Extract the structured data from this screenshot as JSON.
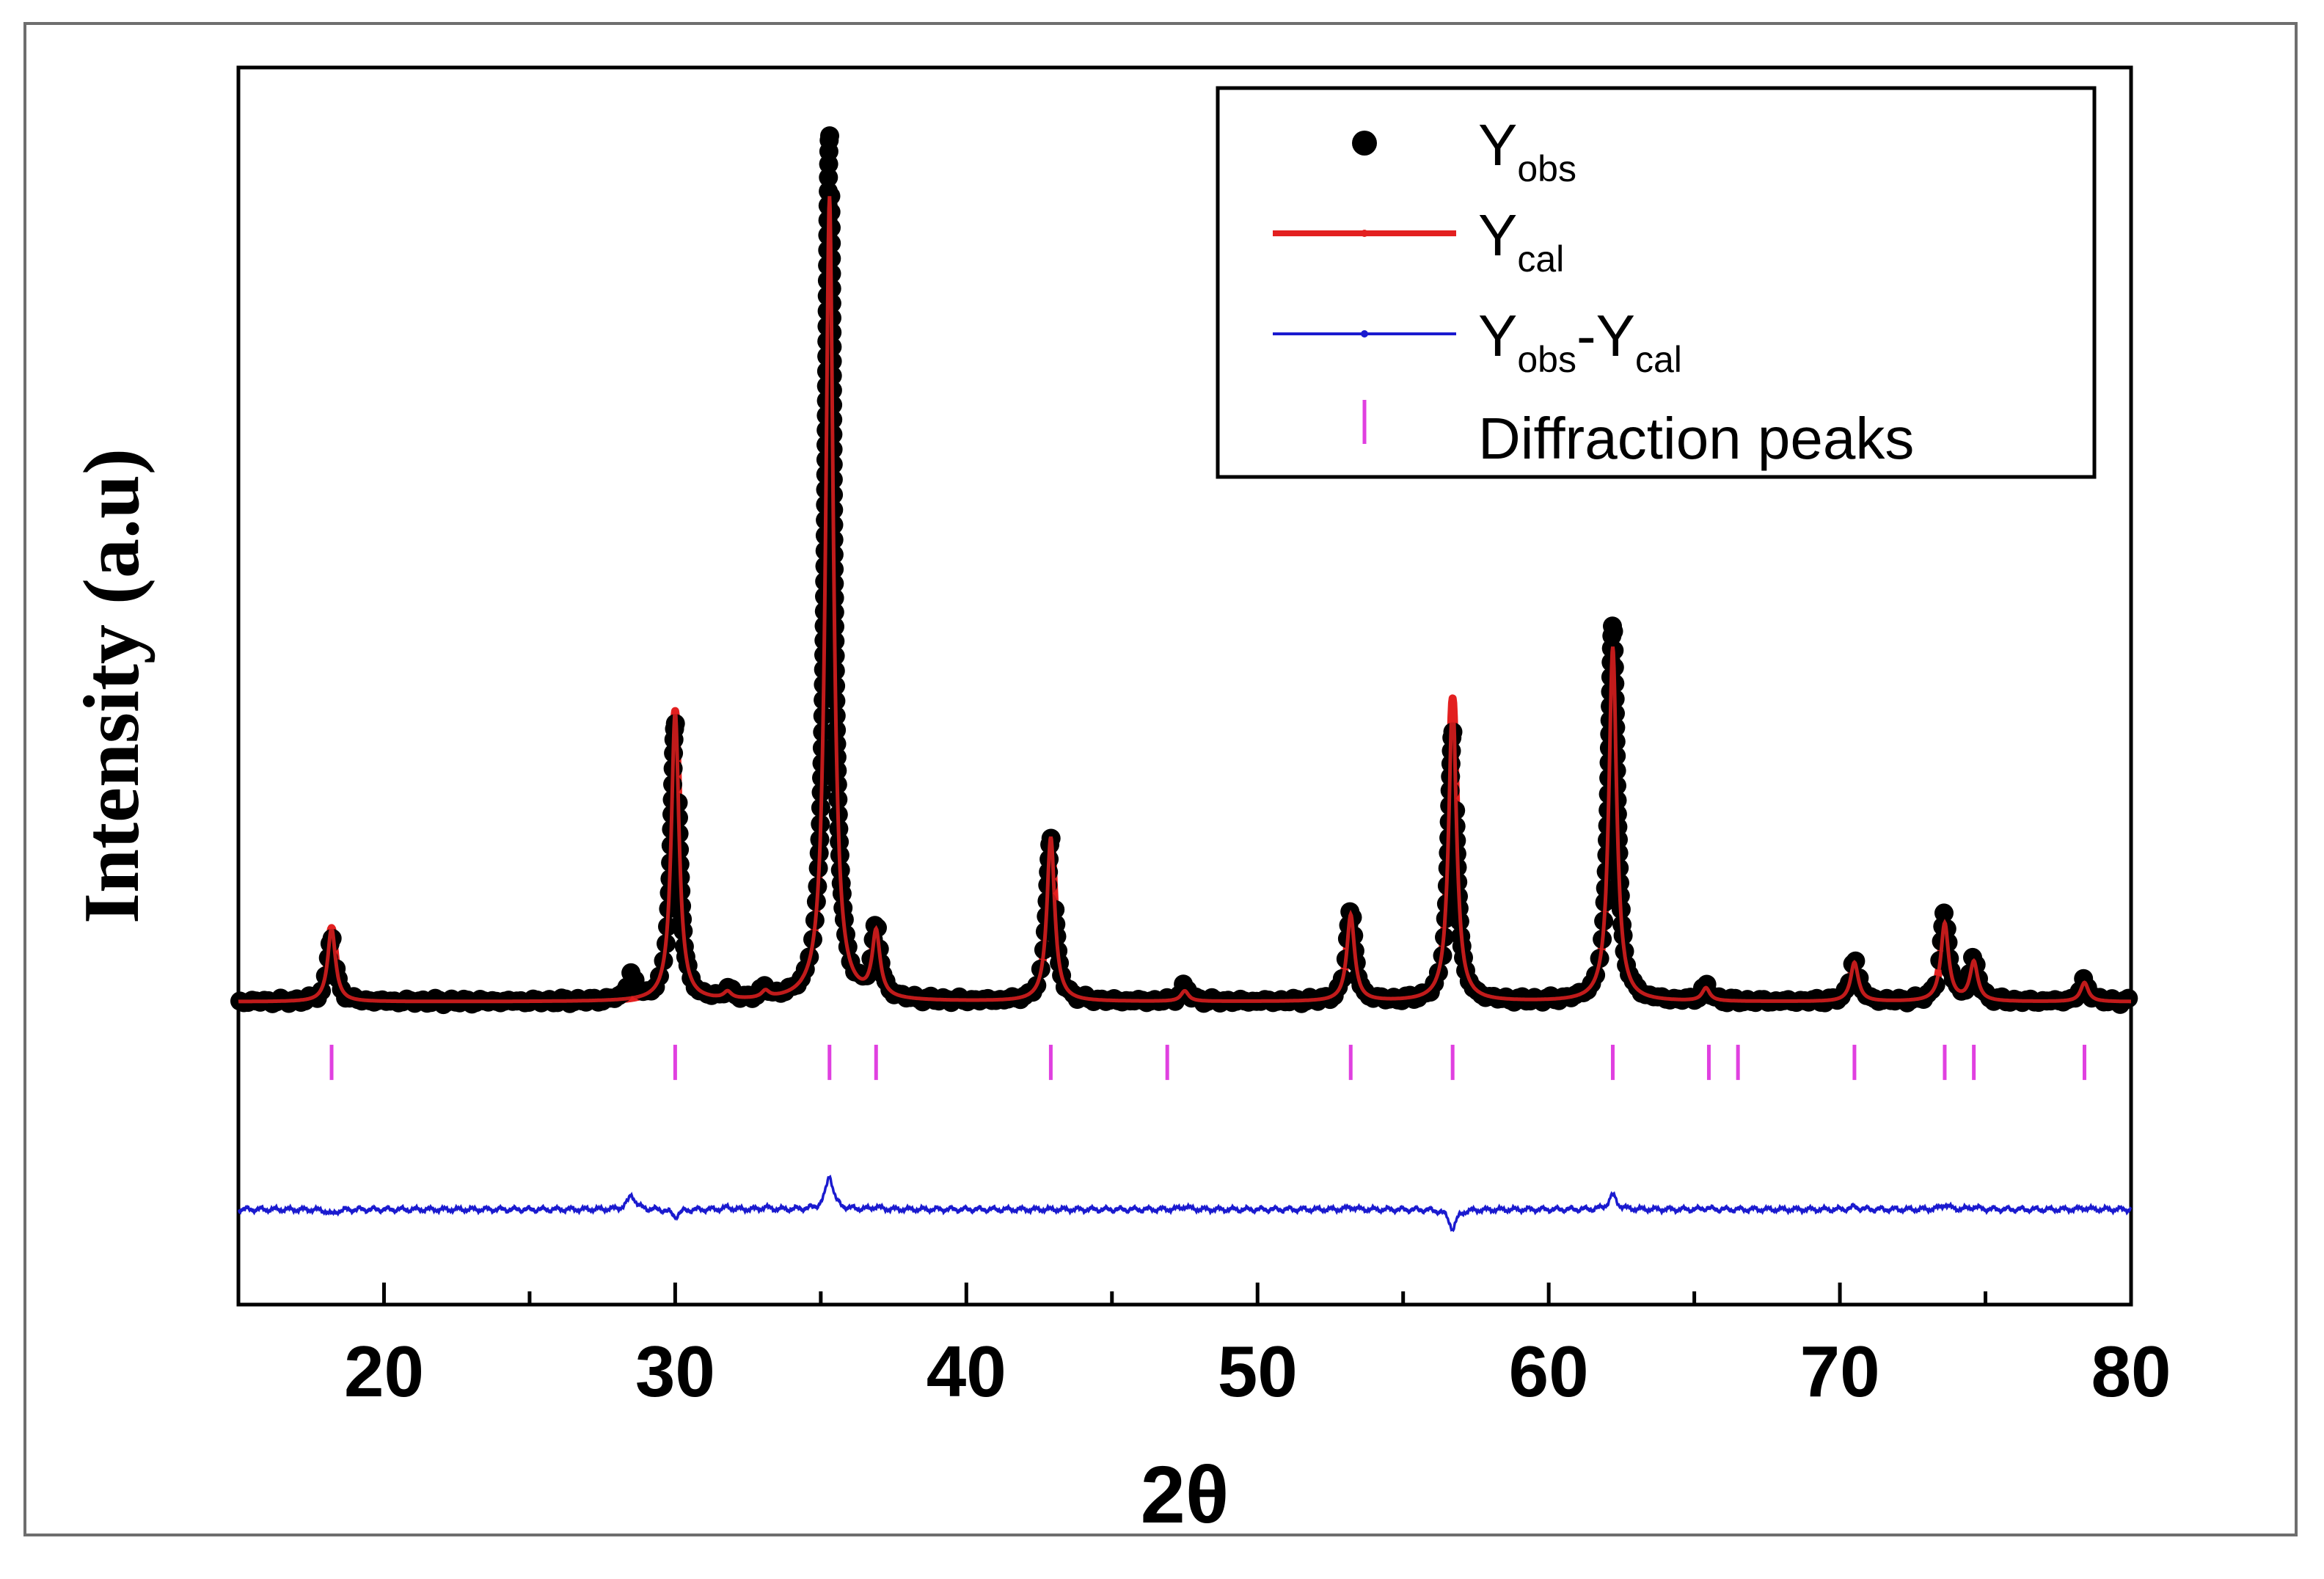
{
  "chart_data": {
    "type": "line",
    "title": "",
    "xlabel": "2θ",
    "ylabel": "Intensity (a.u)",
    "xlim": [
      15,
      80
    ],
    "ylim": [
      -0.35,
      1.08
    ],
    "grid": false,
    "x_ticks": [
      {
        "value": 20,
        "label": "20"
      },
      {
        "value": 30,
        "label": "30"
      },
      {
        "value": 40,
        "label": "40"
      },
      {
        "value": 50,
        "label": "50"
      },
      {
        "value": 60,
        "label": "60"
      },
      {
        "value": 70,
        "label": "70"
      },
      {
        "value": 80,
        "label": "80"
      }
    ],
    "y_ticks_shown": false,
    "legend": {
      "placement": "top-right",
      "entries": [
        {
          "key": "obs",
          "text": "Y",
          "sub": "obs",
          "text2": "",
          "sub2": "",
          "color": "#000000",
          "marker": "circle"
        },
        {
          "key": "cal",
          "text": "Y",
          "sub": "cal",
          "text2": "",
          "sub2": "",
          "color": "#e32020",
          "marker": "line"
        },
        {
          "key": "diff",
          "text": "Y",
          "sub": "obs",
          "text2": "-Y",
          "sub2": "cal",
          "color": "#1a1acf",
          "marker": "line"
        },
        {
          "key": "peaks",
          "text": "Diffraction peaks",
          "sub": "",
          "text2": "",
          "sub2": "",
          "color": "#e040e0",
          "marker": "tick"
        }
      ]
    },
    "baseline_intensity": 0.0,
    "difference_offset": -0.24,
    "peaks_row_level": -0.07,
    "series_colors": {
      "obs": "#000000",
      "cal": "#e32020",
      "diff": "#1a1acf",
      "peaks": "#e040e0"
    },
    "peaks": [
      {
        "pos": 18.2,
        "obs": 0.075,
        "cal": 0.085
      },
      {
        "pos": 28.5,
        "obs": 0.03,
        "cal": 0.0
      },
      {
        "pos": 30.0,
        "obs": 0.32,
        "cal": 0.335
      },
      {
        "pos": 31.8,
        "obs": 0.012,
        "cal": 0.008
      },
      {
        "pos": 33.1,
        "obs": 0.012,
        "cal": 0.008
      },
      {
        "pos": 35.3,
        "obs": 1.0,
        "cal": 0.93
      },
      {
        "pos": 36.9,
        "obs": 0.08,
        "cal": 0.075
      },
      {
        "pos": 42.9,
        "obs": 0.19,
        "cal": 0.19
      },
      {
        "pos": 47.5,
        "obs": 0.018,
        "cal": 0.012
      },
      {
        "pos": 53.2,
        "obs": 0.105,
        "cal": 0.1
      },
      {
        "pos": 56.7,
        "obs": 0.31,
        "cal": 0.35
      },
      {
        "pos": 62.2,
        "obs": 0.44,
        "cal": 0.41
      },
      {
        "pos": 65.4,
        "obs": 0.018,
        "cal": 0.015
      },
      {
        "pos": 70.5,
        "obs": 0.05,
        "cal": 0.045
      },
      {
        "pos": 73.6,
        "obs": 0.1,
        "cal": 0.09
      },
      {
        "pos": 74.6,
        "obs": 0.05,
        "cal": 0.045
      },
      {
        "pos": 78.4,
        "obs": 0.025,
        "cal": 0.022
      }
    ],
    "diffraction_peak_positions": [
      18.2,
      30.0,
      35.3,
      36.9,
      42.9,
      46.9,
      53.2,
      56.7,
      62.2,
      65.5,
      66.5,
      70.5,
      73.6,
      74.6,
      78.4
    ]
  }
}
